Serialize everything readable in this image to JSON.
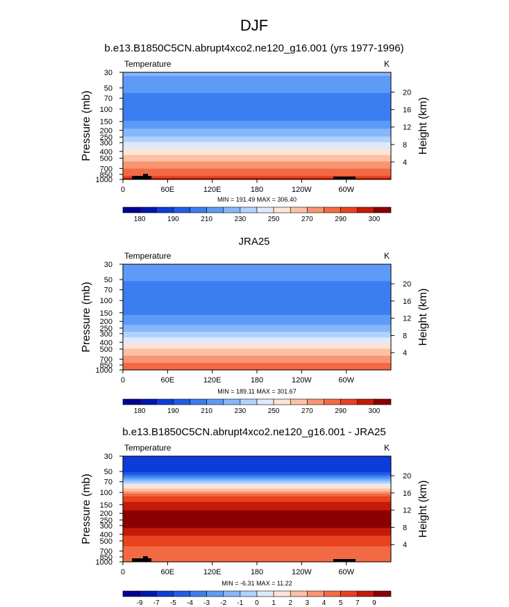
{
  "page": {
    "main_title": "DJF"
  },
  "chart_data": [
    {
      "type": "heatmap",
      "title": "b.e13.B1850C5CN.abrupt4xco2.ne120_g16.001 (yrs 1977-1996)",
      "left_label": "Temperature",
      "right_label": "K",
      "xlabel": "",
      "ylabel": "Pressure (mb)",
      "ylabel_right": "Height (km)",
      "x_ticks": [
        "0",
        "60E",
        "120E",
        "180",
        "120W",
        "60W"
      ],
      "y_ticks": [
        "30",
        "50",
        "70",
        "100",
        "150",
        "200",
        "250",
        "300",
        "400",
        "500",
        "700",
        "850",
        "1000"
      ],
      "y2_ticks": [
        "20",
        "16",
        "12",
        "8",
        "4"
      ],
      "min": 191.49,
      "max": 306.4,
      "minmax_text": "MIN = 191.49  MAX = 306.40",
      "levels": [
        180,
        185,
        190,
        200,
        210,
        220,
        230,
        240,
        250,
        260,
        270,
        280,
        290,
        295,
        300
      ],
      "colorbar_labels": [
        "180",
        "190",
        "210",
        "230",
        "250",
        "270",
        "290",
        "300"
      ],
      "profile": [
        [
          30,
          222
        ],
        [
          50,
          214
        ],
        [
          70,
          206
        ],
        [
          100,
          202
        ],
        [
          120,
          203
        ],
        [
          150,
          211
        ],
        [
          200,
          222
        ],
        [
          250,
          231
        ],
        [
          300,
          240
        ],
        [
          400,
          254
        ],
        [
          500,
          265
        ],
        [
          700,
          280
        ],
        [
          850,
          288
        ],
        [
          1000,
          297
        ]
      ]
    },
    {
      "type": "heatmap",
      "title": "JRA25",
      "left_label": "Temperature",
      "right_label": "K",
      "xlabel": "",
      "ylabel": "Pressure (mb)",
      "ylabel_right": "Height (km)",
      "x_ticks": [
        "0",
        "60E",
        "120E",
        "180",
        "120W",
        "60W"
      ],
      "y_ticks": [
        "30",
        "50",
        "70",
        "100",
        "150",
        "200",
        "250",
        "300",
        "400",
        "500",
        "700",
        "850",
        "1000"
      ],
      "y2_ticks": [
        "20",
        "16",
        "12",
        "8",
        "4"
      ],
      "min": 189.11,
      "max": 301.67,
      "minmax_text": "MIN = 189.11  MAX = 301.67",
      "levels": [
        180,
        185,
        190,
        200,
        210,
        220,
        230,
        240,
        250,
        260,
        270,
        280,
        290,
        295,
        300
      ],
      "colorbar_labels": [
        "180",
        "190",
        "210",
        "230",
        "250",
        "270",
        "290",
        "300"
      ],
      "profile": [
        [
          30,
          218
        ],
        [
          50,
          211
        ],
        [
          70,
          205
        ],
        [
          100,
          202
        ],
        [
          150,
          208
        ],
        [
          200,
          215
        ],
        [
          250,
          224
        ],
        [
          300,
          233
        ],
        [
          400,
          248
        ],
        [
          500,
          260
        ],
        [
          700,
          275
        ],
        [
          850,
          283
        ],
        [
          1000,
          290
        ]
      ]
    },
    {
      "type": "heatmap",
      "title": "b.e13.B1850C5CN.abrupt4xco2.ne120_g16.001 - JRA25",
      "left_label": "Temperature",
      "right_label": "K",
      "xlabel": "",
      "ylabel": "Pressure (mb)",
      "ylabel_right": "Height (km)",
      "x_ticks": [
        "0",
        "60E",
        "120E",
        "180",
        "120W",
        "60W"
      ],
      "y_ticks": [
        "30",
        "50",
        "70",
        "100",
        "150",
        "200",
        "250",
        "300",
        "400",
        "500",
        "700",
        "850",
        "1000"
      ],
      "y2_ticks": [
        "20",
        "16",
        "12",
        "8",
        "4"
      ],
      "min": -6.31,
      "max": 11.22,
      "minmax_text": "MIN = -6.31  MAX = 11.22",
      "levels": [
        -9,
        -7,
        -5,
        -4,
        -3,
        -2,
        -1,
        0,
        1,
        2,
        3,
        4,
        5,
        7,
        9
      ],
      "colorbar_labels": [
        "-9",
        "-7",
        "-5",
        "-4",
        "-3",
        "-2",
        "-1",
        "0",
        "1",
        "2",
        "3",
        "4",
        "5",
        "7",
        "9"
      ],
      "profile": [
        [
          30,
          -6
        ],
        [
          50,
          -5.5
        ],
        [
          65,
          -2
        ],
        [
          80,
          1
        ],
        [
          100,
          3.5
        ],
        [
          150,
          8
        ],
        [
          200,
          9.5
        ],
        [
          300,
          9.5
        ],
        [
          400,
          7.5
        ],
        [
          500,
          5.5
        ],
        [
          700,
          4.5
        ],
        [
          1000,
          4.5
        ]
      ]
    }
  ],
  "colors": {
    "palette": [
      "#00008f",
      "#0016b0",
      "#0d3dd9",
      "#1e5de8",
      "#3b7ef0",
      "#5e9bf7",
      "#86b7fb",
      "#b2d2fc",
      "#deeafc",
      "#fde4d6",
      "#fcc0a4",
      "#f89572",
      "#f26b45",
      "#e8421f",
      "#c41a08",
      "#8a0000"
    ]
  }
}
